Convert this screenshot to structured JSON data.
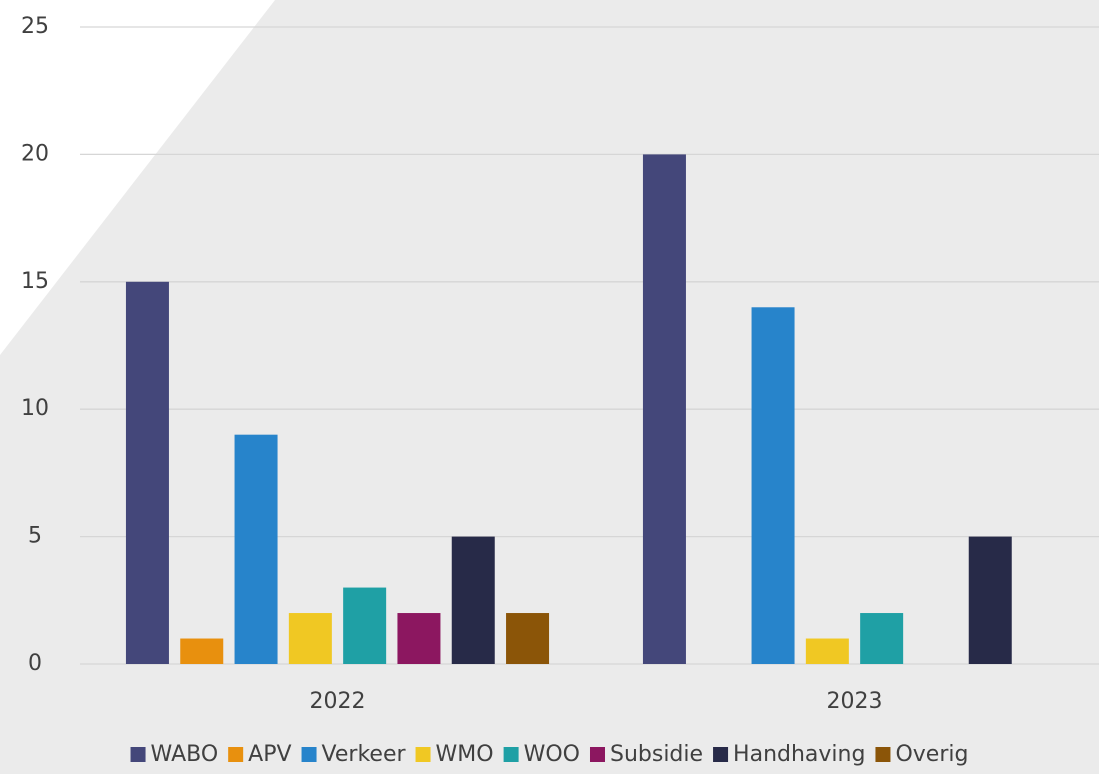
{
  "chart_data": {
    "type": "bar",
    "categories": [
      "2022",
      "2023"
    ],
    "series": [
      {
        "name": "WABO",
        "color": "#44477a",
        "values": [
          15,
          20
        ]
      },
      {
        "name": "APV",
        "color": "#e8900e",
        "values": [
          1,
          0
        ]
      },
      {
        "name": "Verkeer",
        "color": "#2784cb",
        "values": [
          9,
          14
        ]
      },
      {
        "name": "WMO",
        "color": "#f0c823",
        "values": [
          2,
          1
        ]
      },
      {
        "name": "WOO",
        "color": "#1fa0a5",
        "values": [
          3,
          2
        ]
      },
      {
        "name": "Subsidie",
        "color": "#8c1760",
        "values": [
          2,
          0
        ]
      },
      {
        "name": "Handhaving",
        "color": "#272a48",
        "values": [
          5,
          5
        ]
      },
      {
        "name": "Overig",
        "color": "#8b5508",
        "values": [
          2,
          0
        ]
      }
    ],
    "ylim": [
      0,
      25
    ],
    "yticks": [
      0,
      5,
      10,
      15,
      20,
      25
    ],
    "grid": true,
    "legend": "bottom"
  }
}
